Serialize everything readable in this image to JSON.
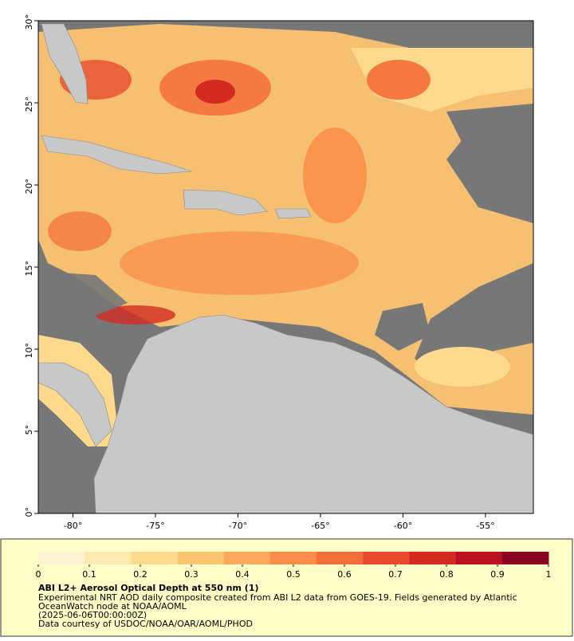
{
  "map": {
    "xlim": [
      -82.1,
      -52.1
    ],
    "ylim": [
      0,
      30
    ],
    "xticks": [
      {
        "value": -80,
        "label": "-80°"
      },
      {
        "value": -75,
        "label": "-75°"
      },
      {
        "value": -70,
        "label": "-70°"
      },
      {
        "value": -65,
        "label": "-65°"
      },
      {
        "value": -60,
        "label": "-60°"
      },
      {
        "value": -55,
        "label": "-55°"
      }
    ],
    "yticks": [
      {
        "value": 0,
        "label": "0°"
      },
      {
        "value": 5,
        "label": "5°"
      },
      {
        "value": 10,
        "label": "10°"
      },
      {
        "value": 15,
        "label": "15°"
      },
      {
        "value": 20,
        "label": "20°"
      },
      {
        "value": 25,
        "label": "25°"
      },
      {
        "value": 30,
        "label": "30°"
      }
    ]
  },
  "colorbar": {
    "lim": [
      0,
      1
    ],
    "ticks": [
      0,
      0.1,
      0.2,
      0.3,
      0.4,
      0.5,
      0.6,
      0.7,
      0.8,
      0.9,
      1
    ],
    "colors": [
      "#fff5d0",
      "#fee9b0",
      "#fed98e",
      "#fdc472",
      "#fca95a",
      "#fb8c46",
      "#f46d38",
      "#e84b2c",
      "#d42a22",
      "#b8111f",
      "#8a0022"
    ]
  },
  "caption": {
    "title": "ABI L2+ Aerosol Optical Depth at 550 nm (1)",
    "lines": [
      "Experimental NRT AOD daily composite created from ABI L2 data from GOES-19. Fields generated by Atlantic",
      "OceanWatch node at NOAA/AOML",
      "(2025-06-06T00:00:00Z)",
      "Data courtesy of USDOC/NOAA/OAR/AOML/PHOD"
    ]
  }
}
